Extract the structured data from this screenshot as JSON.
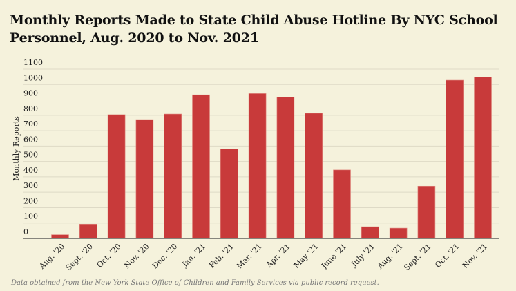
{
  "chart_data": {
    "type": "bar",
    "title": "Monthly Reports Made to State Child Abuse Hotline By NYC School Personnel, Aug. 2020 to Nov. 2021",
    "xlabel": "",
    "ylabel": "Monthly Reports",
    "ylim": [
      0,
      1100
    ],
    "yticks": [
      0,
      100,
      200,
      300,
      400,
      500,
      600,
      700,
      800,
      900,
      1000,
      1100
    ],
    "grid": true,
    "categories": [
      "Aug. '20",
      "Sept. '20",
      "Oct. '20",
      "Nov. '20",
      "Dec. '20",
      "Jan. '21",
      "Feb. '21",
      "Mar. '21",
      "Apr. '21",
      "May '21",
      "June '21",
      "July '21",
      "Aug. '21",
      "Sept. '21",
      "Oct. '21",
      "Nov. '21"
    ],
    "values": [
      24,
      93,
      804,
      772,
      808,
      933,
      582,
      941,
      919,
      813,
      445,
      76,
      67,
      340,
      1028,
      1048
    ],
    "bar_color": "#c83a3a"
  },
  "note": "Data obtained from the New York State Office of Children and Family Services via public record request."
}
